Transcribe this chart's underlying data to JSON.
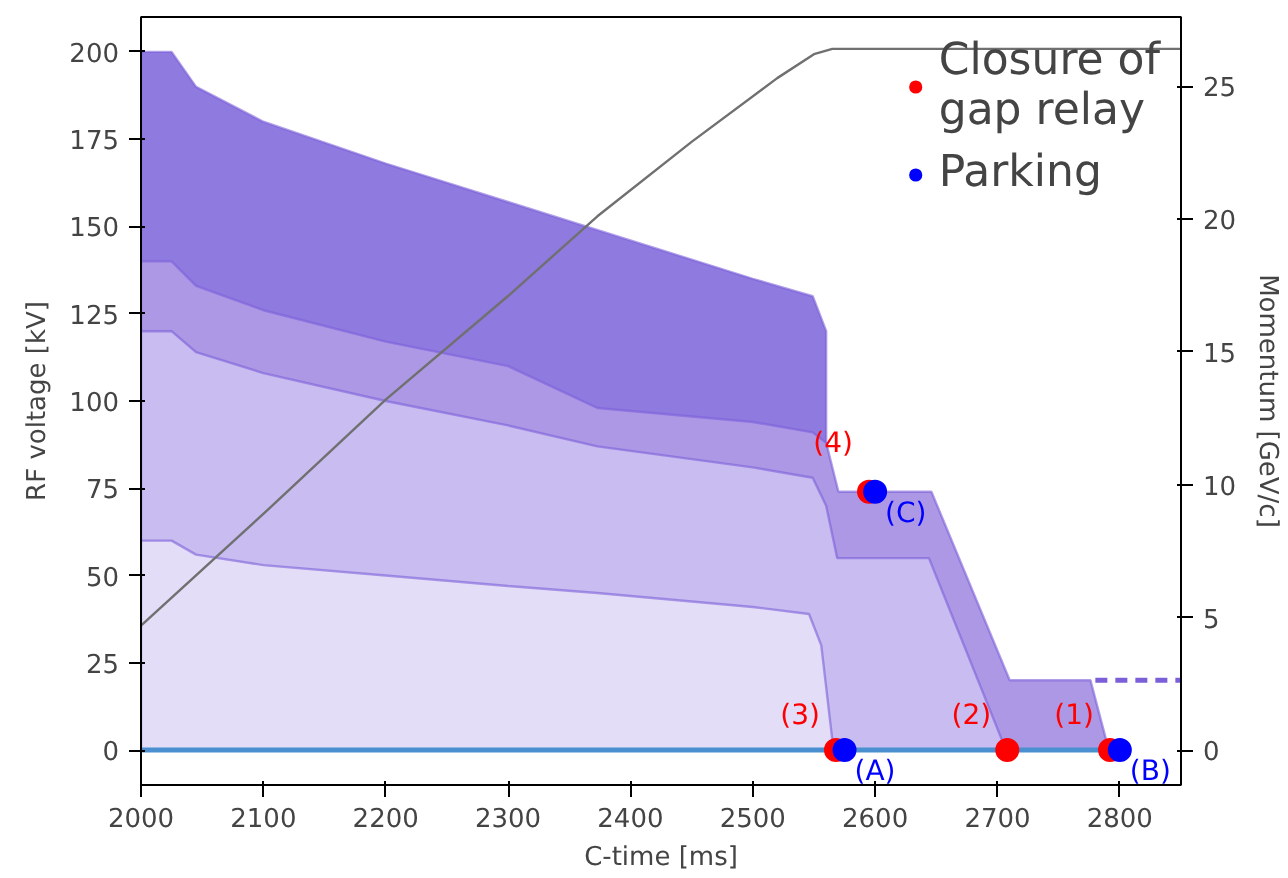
{
  "chart_data": {
    "type": "area",
    "xlabel": "C-time [ms]",
    "ylabel": "RF voltage [kV]",
    "y2label": "Momentum [GeV/c]",
    "xlim": [
      2000,
      2850
    ],
    "xticks": [
      2000,
      2100,
      2200,
      2300,
      2400,
      2500,
      2600,
      2700,
      2800
    ],
    "ylim": [
      -10,
      210
    ],
    "yticks": [
      0,
      25,
      50,
      75,
      100,
      125,
      150,
      175,
      200
    ],
    "y2lim": [
      -1.3,
      27.6
    ],
    "y2ticks": [
      0,
      5,
      10,
      15,
      20,
      25
    ],
    "grid": false,
    "legend": "top right",
    "annotations": [
      {
        "text": "(3)",
        "x": 2568,
        "y": 0
      },
      {
        "text": "(2)",
        "x": 2708,
        "y": 0
      },
      {
        "text": "(1)",
        "x": 2792,
        "y": 0
      },
      {
        "text": "(4)",
        "x": 2595,
        "y": 74
      },
      {
        "text": "(A)",
        "x": 2575,
        "y": 0
      },
      {
        "text": "(B)",
        "x": 2800,
        "y": 0
      },
      {
        "text": "(C)",
        "x": 2600,
        "y": 74
      }
    ],
    "series": [
      {
        "color": "#8f7ae0",
        "x": [
          2000,
          2025,
          2045,
          2100,
          2200,
          2300,
          2400,
          2500,
          2549,
          2560
        ],
        "values": [
          200,
          200,
          190,
          180,
          168,
          157,
          146,
          135,
          130,
          120
        ]
      },
      {
        "color": "#ad98e6",
        "x": [
          2000,
          2025,
          2045,
          2100,
          2200,
          2300,
          2373,
          2500,
          2549,
          2560,
          2570,
          2646,
          2710,
          2776,
          2791
        ],
        "values": [
          140,
          140,
          133,
          126,
          117,
          110,
          98,
          94,
          91,
          88,
          74,
          74,
          20,
          20,
          0
        ]
      },
      {
        "color": "#c8bcf0",
        "x": [
          2000,
          2025,
          2045,
          2100,
          2200,
          2300,
          2373,
          2500,
          2549,
          2560,
          2569,
          2644,
          2707
        ],
        "values": [
          120,
          120,
          114,
          108,
          100,
          93,
          87,
          81,
          78,
          70,
          55,
          55,
          0
        ]
      },
      {
        "color": "#e3ddf7",
        "x": [
          2000,
          2025,
          2045,
          2100,
          2200,
          2300,
          2373,
          2500,
          2546,
          2556,
          2565,
          2568
        ],
        "values": [
          60,
          60,
          56,
          53,
          50,
          47,
          45,
          41,
          39,
          30,
          3,
          0
        ]
      },
      {
        "type": "line",
        "color": "#7b5fd9",
        "line_style": "dashed",
        "x": [
          2780,
          2850
        ],
        "values": [
          20,
          20
        ]
      },
      {
        "type": "line",
        "color": "#4a90d0",
        "x": [
          2000,
          2800
        ],
        "values": [
          0,
          0
        ]
      },
      {
        "type": "line",
        "color": "#707070",
        "axis": "y2",
        "x": [
          2000,
          2100,
          2200,
          2300,
          2373,
          2450,
          2520,
          2550,
          2565,
          2850
        ],
        "values": [
          4.7,
          8.9,
          13.2,
          17.1,
          20.1,
          22.9,
          25.3,
          26.2,
          26.4,
          26.4
        ]
      },
      {
        "type": "scatter",
        "name": "Closure of gap relay",
        "color": "#ff0000",
        "marker": "circle",
        "x": [
          2568,
          2708,
          2792,
          2595
        ],
        "values": [
          0,
          0,
          0,
          74
        ]
      },
      {
        "type": "scatter",
        "name": "Parking",
        "color": "#0000ff",
        "marker": "circle",
        "x": [
          2575,
          2800,
          2600
        ],
        "values": [
          0,
          0,
          74
        ]
      }
    ]
  }
}
